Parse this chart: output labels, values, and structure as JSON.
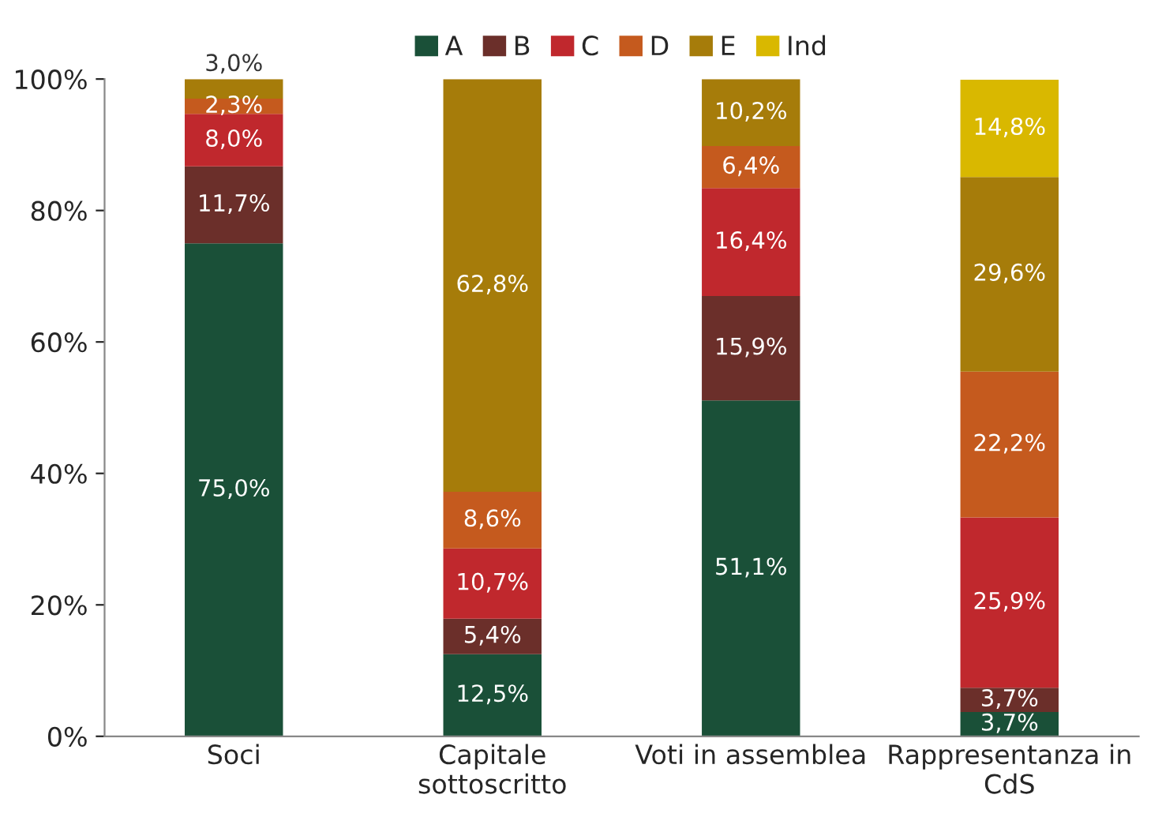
{
  "chart_data": {
    "type": "bar",
    "stacked": true,
    "categories": [
      "Soci",
      "Capitale\nsottoscritto",
      "Voti in assemblea",
      "Rappresentanza in\nCdS"
    ],
    "series": [
      {
        "name": "A",
        "color": "#1a5038",
        "values": [
          75.0,
          12.5,
          51.1,
          3.7
        ],
        "value_labels": [
          "75,0%",
          "12,5%",
          "51,1%",
          "3,7%"
        ]
      },
      {
        "name": "B",
        "color": "#6b2f2a",
        "values": [
          11.7,
          5.4,
          15.9,
          3.7
        ],
        "value_labels": [
          "11,7%",
          "5,4%",
          "15,9%",
          "3,7%"
        ]
      },
      {
        "name": "C",
        "color": "#c0282d",
        "values": [
          8.0,
          10.7,
          16.4,
          25.9
        ],
        "value_labels": [
          "8,0%",
          "10,7%",
          "16,4%",
          "25,9%"
        ]
      },
      {
        "name": "D",
        "color": "#c55a1e",
        "values": [
          2.3,
          8.6,
          6.4,
          22.2
        ],
        "value_labels": [
          "2,3%",
          "8,6%",
          "6,4%",
          "22,2%"
        ]
      },
      {
        "name": "E",
        "color": "#a67c0a",
        "values": [
          3.0,
          62.8,
          10.2,
          29.6
        ],
        "value_labels": [
          "3,0%",
          "62,8%",
          "10,2%",
          "29,6%"
        ]
      },
      {
        "name": "Ind",
        "color": "#d9b800",
        "values": [
          null,
          null,
          null,
          14.8
        ],
        "value_labels": [
          null,
          null,
          null,
          "14,8%"
        ]
      }
    ],
    "ylim": [
      0,
      100
    ],
    "yticks": [
      {
        "value": 0,
        "label": "0%"
      },
      {
        "value": 20,
        "label": "20%"
      },
      {
        "value": 40,
        "label": "40%"
      },
      {
        "value": 60,
        "label": "60%"
      },
      {
        "value": 80,
        "label": "80%"
      },
      {
        "value": 100,
        "label": "100%"
      }
    ],
    "grid": false,
    "legend": "top"
  }
}
